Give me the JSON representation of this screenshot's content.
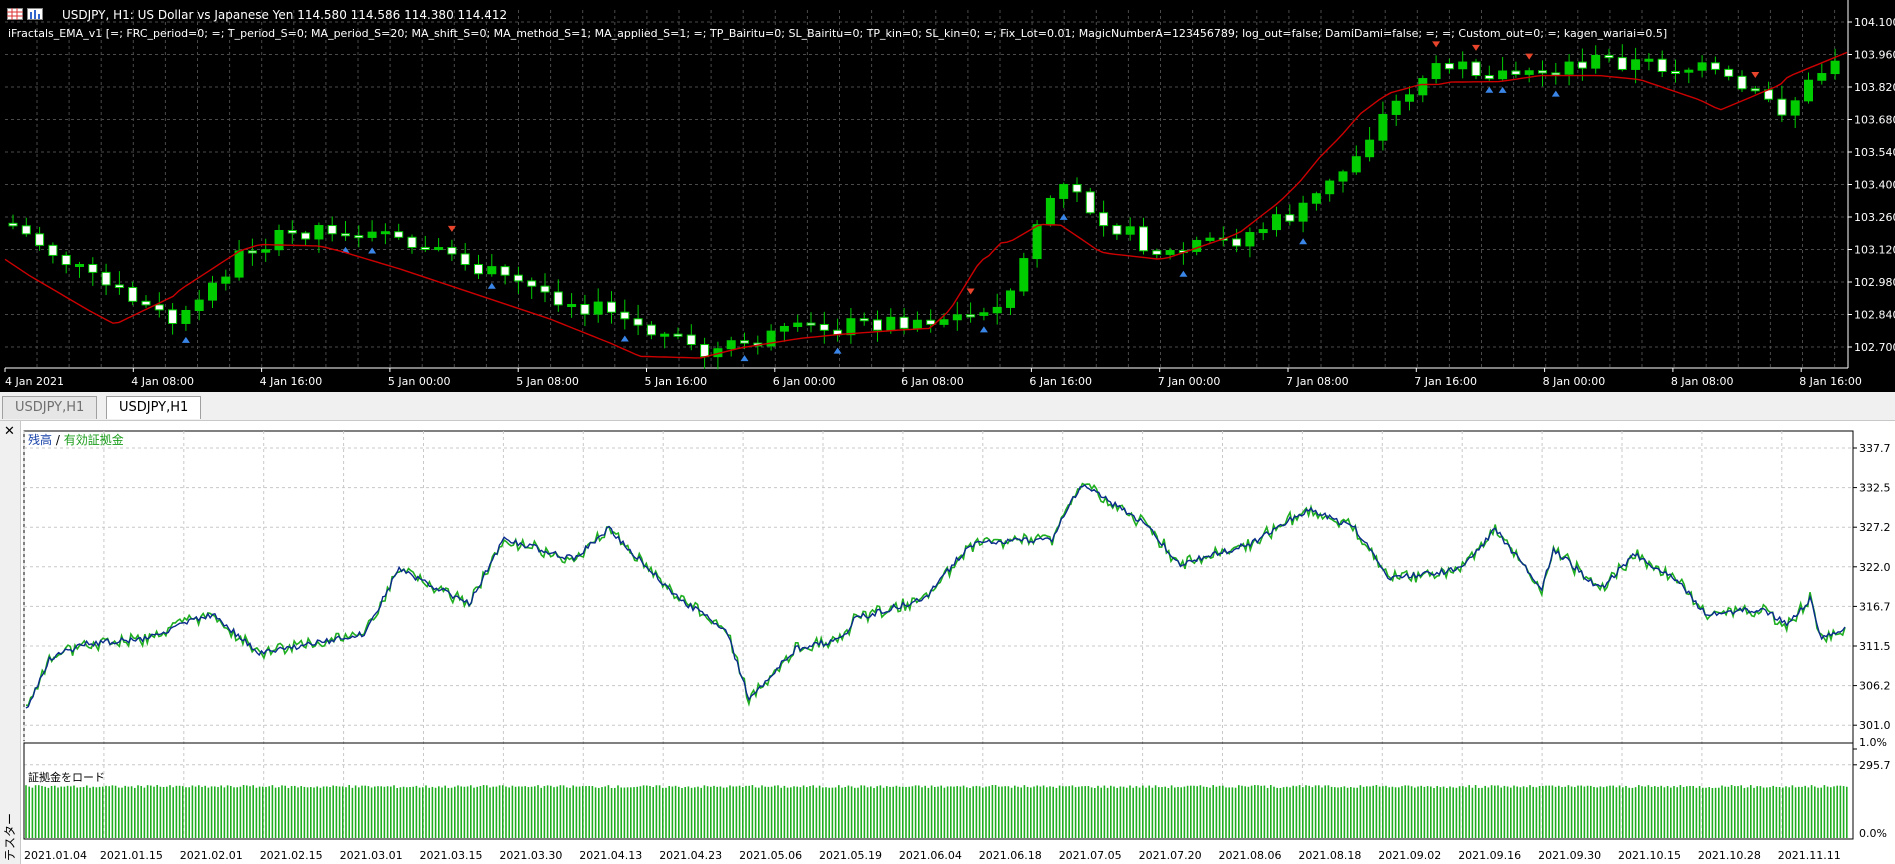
{
  "top_chart": {
    "header": "USDJPY, H1:  US Dollar vs Japanese Yen  114.580 114.586 114.380 114.412",
    "ea_params": "iFractals_EMA_v1 [=; FRC_period=0; =; T_period_S=0; MA_period_S=20; MA_shift_S=0; MA_method_S=1; MA_applied_S=1; =; TP_Bairitu=0; SL_Bairitu=0; TP_kin=0; SL_kin=0; =; Fix_Lot=0.01; MagicNumberA=123456789; log_out=false; DamiDami=false; =; =; Custom_out=0; =; kagen_wariai=0.5]",
    "price_labels": [
      "104.100",
      "103.960",
      "103.820",
      "103.680",
      "103.540",
      "103.400",
      "103.260",
      "103.120",
      "102.980",
      "102.840",
      "102.700"
    ],
    "time_labels": [
      "4 Jan 2021",
      "4 Jan 08:00",
      "4 Jan 16:00",
      "5 Jan 00:00",
      "5 Jan 08:00",
      "5 Jan 16:00",
      "6 Jan 00:00",
      "6 Jan 08:00",
      "6 Jan 16:00",
      "7 Jan 00:00",
      "7 Jan 08:00",
      "7 Jan 16:00",
      "8 Jan 00:00",
      "8 Jan 08:00",
      "8 Jan 16:00"
    ],
    "colors": {
      "background": "#000000",
      "grid": "#4a4a4a",
      "bull_candle": "#00cc00",
      "bear_candle": "#ffffff",
      "ema": "#cc0000",
      "up_arrow": "#3a86e8",
      "down_arrow": "#e8452c"
    },
    "icons": [
      "chart-grid-icon",
      "chart-bars-icon"
    ]
  },
  "tabs": [
    {
      "label": "USDJPY,H1",
      "active": false
    },
    {
      "label": "USDJPY,H1",
      "active": true
    }
  ],
  "tester": {
    "side_label": "テスター",
    "close_glyph": "✕",
    "legend_balance": "残高",
    "legend_sep": " / ",
    "legend_equity": "有効証拠金",
    "y_labels": [
      "337.7",
      "332.5",
      "327.2",
      "322.0",
      "316.7",
      "311.5",
      "306.2",
      "301.0",
      "295.7"
    ],
    "date_labels": [
      "2021.01.04",
      "2021.01.15",
      "2021.02.01",
      "2021.02.15",
      "2021.03.01",
      "2021.03.15",
      "2021.03.30",
      "2021.04.13",
      "2021.04.23",
      "2021.05.06",
      "2021.05.19",
      "2021.06.04",
      "2021.06.18",
      "2021.07.05",
      "2021.07.20",
      "2021.08.06",
      "2021.08.18",
      "2021.09.02",
      "2021.09.16",
      "2021.09.30",
      "2021.10.15",
      "2021.10.28",
      "2021.11.11"
    ],
    "load_label": "証拠金をロード",
    "load_ticks": [
      "1.0%",
      "0.0%"
    ],
    "colors": {
      "balance": "#0a2a8c",
      "equity": "#1fae1f",
      "load_bar": "#1fae1f",
      "grid": "#c8c8c8"
    }
  }
}
